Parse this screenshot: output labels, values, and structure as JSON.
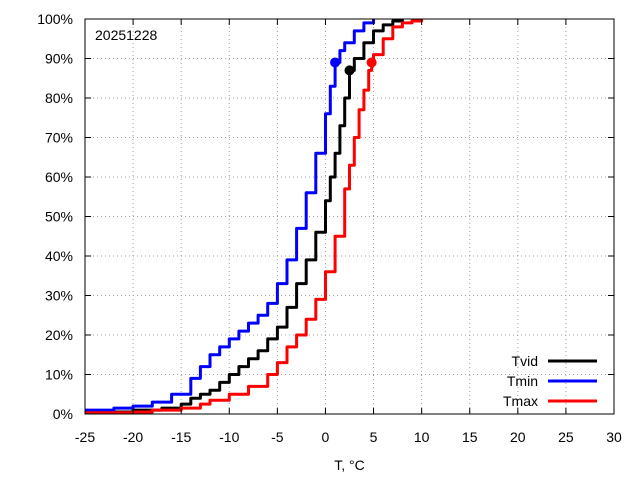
{
  "chart_data": {
    "type": "line",
    "title": "",
    "annotation": "20251228",
    "xlabel": "T, °C",
    "ylabel": "",
    "xlim": [
      -25,
      30
    ],
    "ylim": [
      0,
      100
    ],
    "x_ticks": [
      -25,
      -20,
      -15,
      -10,
      -5,
      0,
      5,
      10,
      15,
      20,
      25,
      30
    ],
    "x_tick_labels": [
      "-25",
      "-20",
      "-15",
      "-10",
      "-5",
      "0",
      "5",
      "10",
      "15",
      "20",
      "25",
      "30"
    ],
    "y_ticks": [
      0,
      10,
      20,
      30,
      40,
      50,
      60,
      70,
      80,
      90,
      100
    ],
    "y_tick_labels": [
      "0%",
      "10%",
      "20%",
      "30%",
      "40%",
      "50%",
      "60%",
      "70%",
      "80%",
      "90%",
      "100%"
    ],
    "grid": true,
    "legend_position": "bottom-right",
    "series": [
      {
        "name": "Tvid",
        "color": "#000000",
        "marker": {
          "x": 2.5,
          "y": 87
        },
        "points": [
          [
            -25,
            0.5
          ],
          [
            -20,
            1
          ],
          [
            -17,
            1.5
          ],
          [
            -15,
            2.5
          ],
          [
            -14,
            4
          ],
          [
            -13,
            5
          ],
          [
            -12,
            6
          ],
          [
            -11,
            8
          ],
          [
            -10,
            10
          ],
          [
            -9,
            12
          ],
          [
            -8,
            14
          ],
          [
            -7,
            16
          ],
          [
            -6,
            19
          ],
          [
            -5,
            22
          ],
          [
            -4,
            27
          ],
          [
            -3,
            33
          ],
          [
            -2,
            39
          ],
          [
            -1,
            46
          ],
          [
            0,
            54
          ],
          [
            0.5,
            60
          ],
          [
            1,
            66
          ],
          [
            1.5,
            73
          ],
          [
            2,
            80
          ],
          [
            2.5,
            87
          ],
          [
            3,
            90
          ],
          [
            4,
            94
          ],
          [
            5,
            97
          ],
          [
            6,
            98.5
          ],
          [
            7,
            99.5
          ],
          [
            8,
            100
          ]
        ]
      },
      {
        "name": "Tmin",
        "color": "#0000ff",
        "marker": {
          "x": 1,
          "y": 89
        },
        "points": [
          [
            -25,
            1
          ],
          [
            -22,
            1.5
          ],
          [
            -20,
            2
          ],
          [
            -18,
            3
          ],
          [
            -16,
            5
          ],
          [
            -14,
            9
          ],
          [
            -13,
            12
          ],
          [
            -12,
            15
          ],
          [
            -11,
            17
          ],
          [
            -10,
            19
          ],
          [
            -9,
            21
          ],
          [
            -8,
            23
          ],
          [
            -7,
            25
          ],
          [
            -6,
            28
          ],
          [
            -5,
            33
          ],
          [
            -4,
            39
          ],
          [
            -3,
            47
          ],
          [
            -2,
            56
          ],
          [
            -1,
            66
          ],
          [
            0,
            76
          ],
          [
            0.5,
            83
          ],
          [
            1,
            89
          ],
          [
            1.5,
            92
          ],
          [
            2,
            94
          ],
          [
            3,
            97
          ],
          [
            4,
            99
          ],
          [
            5,
            100
          ]
        ]
      },
      {
        "name": "Tmax",
        "color": "#ff0000",
        "marker": {
          "x": 4.8,
          "y": 89
        },
        "points": [
          [
            -25,
            0.3
          ],
          [
            -20,
            0.5
          ],
          [
            -18,
            1
          ],
          [
            -15,
            1.5
          ],
          [
            -13,
            2.5
          ],
          [
            -12,
            3.5
          ],
          [
            -10,
            5
          ],
          [
            -8,
            7
          ],
          [
            -6,
            10
          ],
          [
            -5,
            13
          ],
          [
            -4,
            17
          ],
          [
            -3,
            20
          ],
          [
            -2,
            24
          ],
          [
            -1,
            29
          ],
          [
            0,
            36
          ],
          [
            1,
            45
          ],
          [
            2,
            57
          ],
          [
            2.5,
            63
          ],
          [
            3,
            70
          ],
          [
            3.5,
            77
          ],
          [
            4,
            82
          ],
          [
            4.5,
            87
          ],
          [
            4.8,
            89
          ],
          [
            5,
            91
          ],
          [
            6,
            95
          ],
          [
            7,
            98
          ],
          [
            8,
            99
          ],
          [
            9,
            99.5
          ],
          [
            10,
            100
          ]
        ]
      }
    ]
  }
}
